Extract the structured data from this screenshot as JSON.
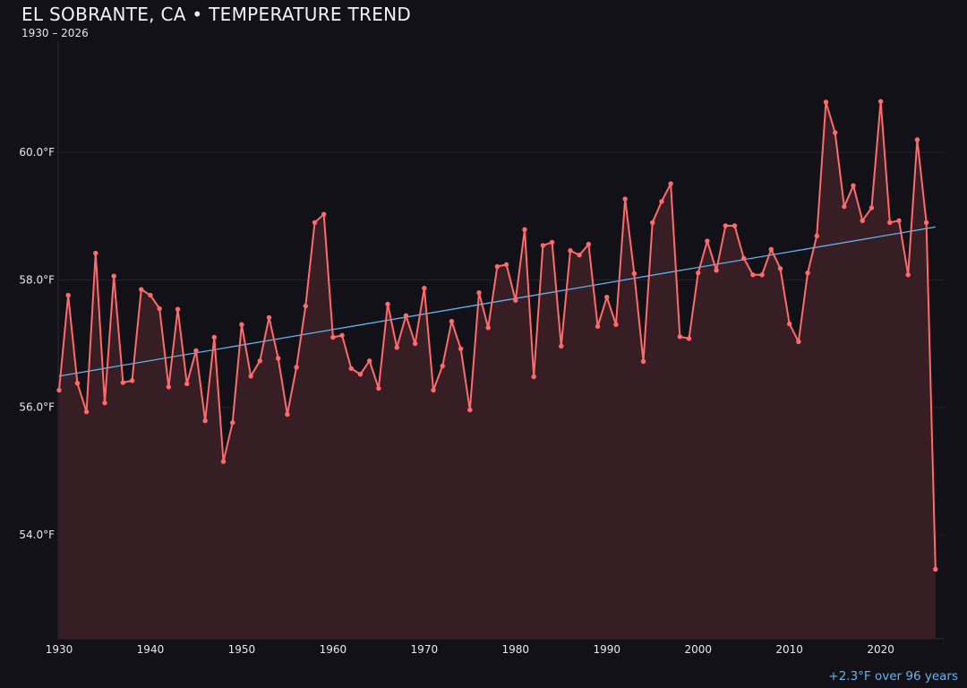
{
  "chart_data": {
    "type": "line",
    "title": "EL SOBRANTE, CA • TEMPERATURE TREND",
    "subtitle": "1930 – 2026",
    "annotation": "+2.3°F over 96 years",
    "xlim": [
      1930,
      2027
    ],
    "ylim": [
      52.37,
      61.9
    ],
    "x_ticks": [
      1930,
      1940,
      1950,
      1960,
      1970,
      1980,
      1990,
      2000,
      2010,
      2020
    ],
    "y_ticks": [
      54.0,
      56.0,
      58.0,
      60.0
    ],
    "y_tick_labels": [
      "54.0°F",
      "56.0°F",
      "58.0°F",
      "60.0°F"
    ],
    "grid": "horizontal",
    "colors": {
      "series": "#ff6b6b",
      "fill": "#3a1f25",
      "trend": "#5fb5ee",
      "background": "#121118"
    },
    "series": [
      {
        "x": [
          1930,
          1931,
          1932,
          1933,
          1934,
          1935,
          1936,
          1937,
          1938,
          1939,
          1940,
          1941,
          1942,
          1943,
          1944,
          1945,
          1946,
          1947,
          1948,
          1949,
          1950,
          1951,
          1952,
          1953,
          1954,
          1955,
          1956,
          1957,
          1958,
          1959,
          1960,
          1961,
          1962,
          1963,
          1964,
          1965,
          1966,
          1967,
          1968,
          1969,
          1970,
          1971,
          1972,
          1973,
          1974,
          1975,
          1976,
          1977,
          1978,
          1979,
          1980,
          1981,
          1982,
          1983,
          1984,
          1985,
          1986,
          1987,
          1988,
          1989,
          1990,
          1991,
          1992,
          1993,
          1994,
          1995,
          1996,
          1997,
          1998,
          1999,
          2000,
          2001,
          2002,
          2003,
          2004,
          2005,
          2006,
          2007,
          2008,
          2009,
          2010,
          2011,
          2012,
          2013,
          2014,
          2015,
          2016,
          2017,
          2018,
          2019,
          2020,
          2021,
          2022,
          2023,
          2024,
          2025,
          2026
        ],
        "values": [
          56.27,
          57.76,
          56.38,
          55.93,
          58.42,
          56.07,
          58.06,
          56.39,
          56.42,
          57.85,
          57.76,
          57.55,
          56.32,
          57.54,
          56.37,
          56.89,
          55.79,
          57.1,
          55.15,
          55.76,
          57.3,
          56.49,
          56.73,
          57.41,
          56.77,
          55.89,
          56.63,
          57.59,
          58.9,
          59.03,
          57.1,
          57.13,
          56.61,
          56.52,
          56.73,
          56.3,
          57.62,
          56.94,
          57.44,
          57.0,
          57.87,
          56.27,
          56.65,
          57.35,
          56.92,
          55.96,
          57.8,
          57.25,
          58.21,
          58.24,
          57.68,
          58.79,
          56.48,
          58.54,
          58.59,
          56.96,
          58.46,
          58.39,
          58.56,
          57.27,
          57.73,
          57.3,
          59.27,
          58.1,
          56.72,
          58.9,
          59.23,
          59.51,
          57.11,
          57.08,
          58.11,
          58.61,
          58.15,
          58.85,
          58.85,
          58.34,
          58.08,
          58.08,
          58.48,
          58.18,
          57.31,
          57.03,
          58.11,
          58.69,
          60.79,
          60.31,
          59.15,
          59.48,
          58.93,
          59.13,
          60.8,
          58.9,
          58.93,
          58.08,
          60.2,
          58.9,
          53.46
        ]
      }
    ],
    "trend": {
      "x": [
        1930,
        2026
      ],
      "values": [
        56.49,
        58.83
      ]
    }
  }
}
